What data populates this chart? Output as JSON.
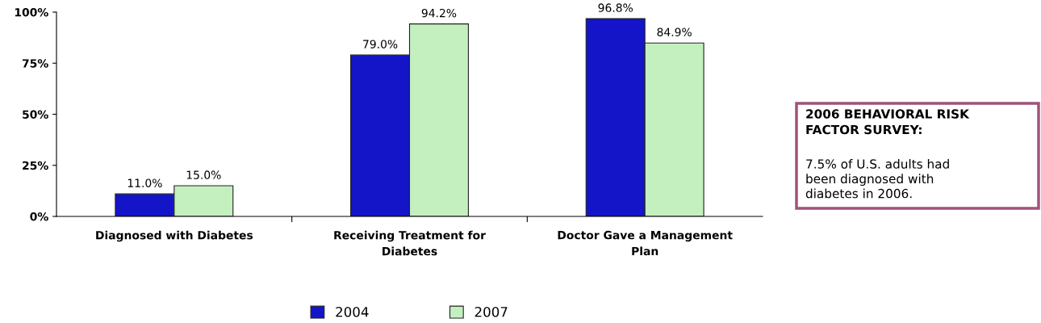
{
  "chart_data": {
    "type": "bar",
    "categories": [
      "Diagnosed with Diabetes",
      "Receiving Treatment for Diabetes",
      "Doctor Gave a Management Plan"
    ],
    "series": [
      {
        "name": "2004",
        "color": "#1414c8",
        "values": [
          11.0,
          79.0,
          96.8
        ],
        "value_labels": [
          "11.0%",
          "79.0%",
          "96.8%"
        ]
      },
      {
        "name": "2007",
        "color": "#c4f0c0",
        "values": [
          15.0,
          94.2,
          84.9
        ],
        "value_labels": [
          "15.0%",
          "94.2%",
          "84.9%"
        ]
      }
    ],
    "ylim": [
      0,
      100
    ],
    "yticks": [
      {
        "value": 0,
        "label": "0%"
      },
      {
        "value": 25,
        "label": "25%"
      },
      {
        "value": 50,
        "label": "50%"
      },
      {
        "value": 75,
        "label": "75%"
      },
      {
        "value": 100,
        "label": "100%"
      }
    ],
    "grid": false,
    "legend": "bottom",
    "annotations": [
      "2006 BEHAVIORAL RISK FACTOR SURVEY:",
      "7.5% of U.S. adults had been diagnosed with diabetes in 2006."
    ]
  }
}
